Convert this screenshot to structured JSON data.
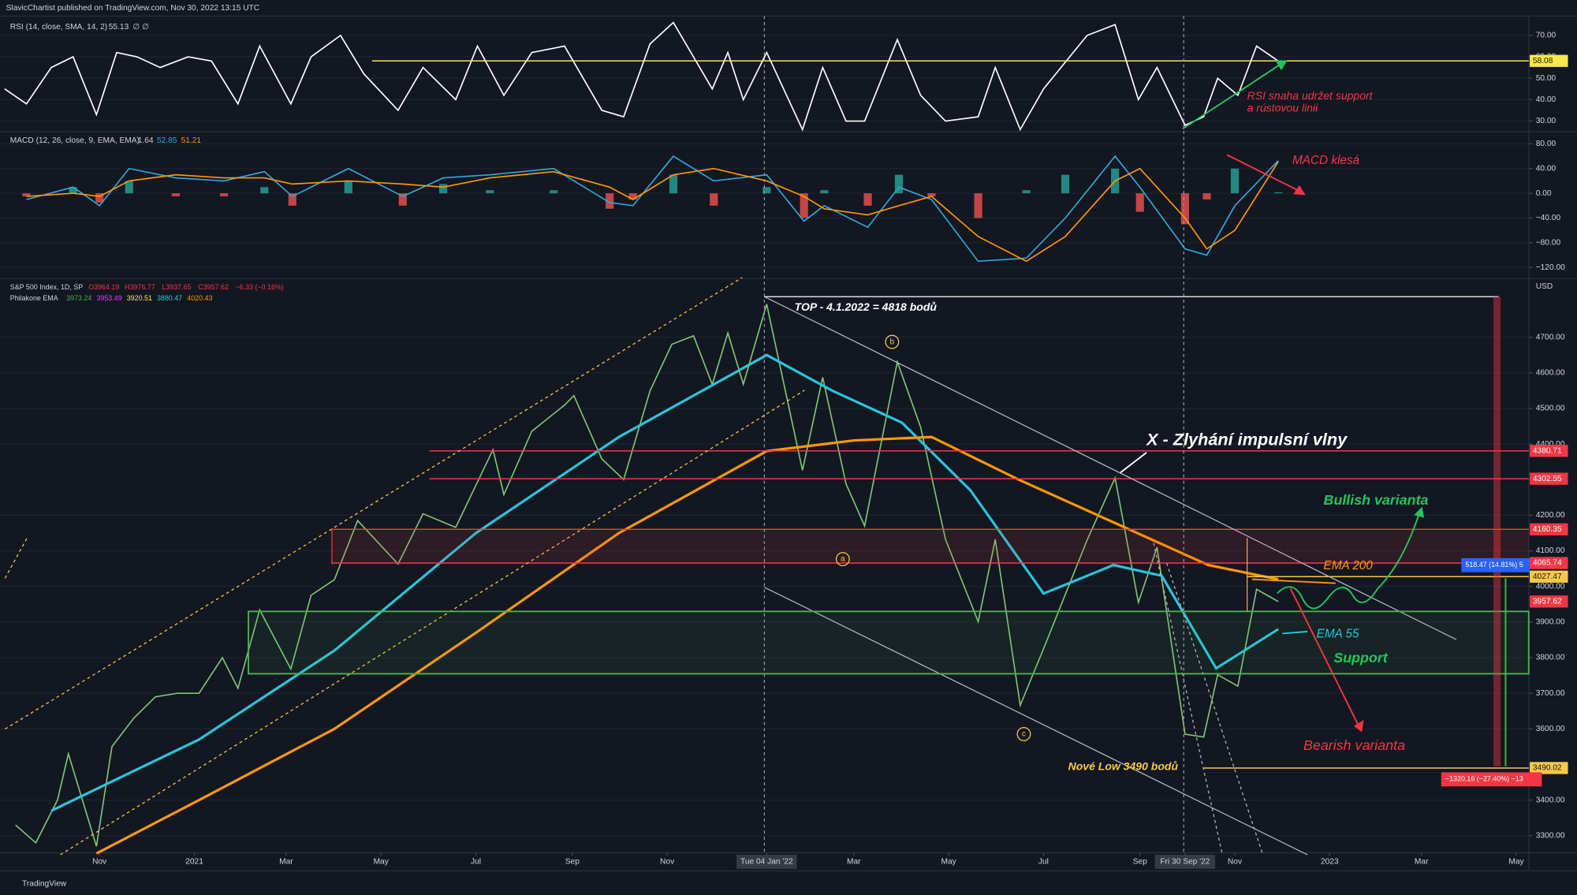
{
  "header": {
    "publisher": "SlavicChartist published on TradingView.com, Nov 30, 2022 13:15 UTC",
    "footer": "TradingView"
  },
  "chart_data": [
    {
      "type": "line",
      "title": "RSI (14, close, SMA, 14, 2)",
      "legend_values": [
        "55.13",
        "∅ ∅"
      ],
      "xlim": [
        "2020-08-29",
        "2023-05-09"
      ],
      "ylim": [
        25,
        79
      ],
      "yticks": [
        {
          "value": 70,
          "label": "70.00"
        },
        {
          "value": 60,
          "label": "60.00"
        },
        {
          "value": 50,
          "label": "50.00"
        },
        {
          "value": 40,
          "label": "40.00"
        },
        {
          "value": 30,
          "label": "30.00"
        }
      ],
      "levels": [
        {
          "value": 58.08,
          "color": "#f7e948"
        }
      ],
      "series": [
        {
          "name": "RSI",
          "color": "#ffffff",
          "style": "line",
          "x": [
            "2020-09-01",
            "2020-09-15",
            "2020-10-01",
            "2020-10-15",
            "2020-10-30",
            "2020-11-12",
            "2020-11-25",
            "2020-12-10",
            "2020-12-28",
            "2021-01-12",
            "2021-01-29",
            "2021-02-12",
            "2021-03-04",
            "2021-03-17",
            "2021-04-05",
            "2021-04-20",
            "2021-05-12",
            "2021-05-28",
            "2021-06-18",
            "2021-07-02",
            "2021-07-19",
            "2021-08-06",
            "2021-08-27",
            "2021-09-20",
            "2021-10-04",
            "2021-10-21",
            "2021-11-05",
            "2021-11-30",
            "2021-12-10",
            "2021-12-20",
            "2022-01-04",
            "2022-01-27",
            "2022-02-09",
            "2022-02-24",
            "2022-03-08",
            "2022-03-29",
            "2022-04-13",
            "2022-04-29",
            "2022-05-20",
            "2022-05-31",
            "2022-06-16",
            "2022-07-01",
            "2022-07-29",
            "2022-08-16",
            "2022-08-31",
            "2022-09-12",
            "2022-09-30",
            "2022-10-12",
            "2022-10-21",
            "2022-11-03",
            "2022-11-15",
            "2022-11-29"
          ],
          "values": [
            45,
            38,
            55,
            60,
            33,
            62,
            60,
            55,
            60,
            58,
            38,
            65,
            38,
            60,
            70,
            52,
            35,
            55,
            40,
            65,
            42,
            62,
            65,
            35,
            32,
            66,
            76,
            45,
            62,
            40,
            62,
            26,
            55,
            30,
            30,
            68,
            42,
            30,
            32,
            55,
            26,
            45,
            70,
            75,
            40,
            55,
            28,
            32,
            50,
            42,
            65,
            58
          ]
        }
      ],
      "annotations": {
        "line1": "RSI snaha udržet support",
        "line2": "a rústovou linii"
      }
    },
    {
      "type": "line",
      "title": "MACD (12, 26, close, 9, EMA, EMA)",
      "legend_values": [
        "1.64",
        "52.85",
        "51.21"
      ],
      "xlim": [
        "2020-08-29",
        "2023-05-09"
      ],
      "ylim": [
        -138,
        98
      ],
      "yticks": [
        {
          "value": 80,
          "label": "80.00"
        },
        {
          "value": 40,
          "label": "40.00"
        },
        {
          "value": 0,
          "label": "0.00"
        },
        {
          "value": -40,
          "label": "−40.00"
        },
        {
          "value": -80,
          "label": "−80.00"
        },
        {
          "value": -120,
          "label": "−120.00"
        }
      ],
      "x": [
        "2020-09-15",
        "2020-10-15",
        "2020-11-01",
        "2020-11-20",
        "2020-12-20",
        "2021-01-20",
        "2021-02-15",
        "2021-03-05",
        "2021-04-10",
        "2021-05-15",
        "2021-06-10",
        "2021-07-10",
        "2021-08-20",
        "2021-09-25",
        "2021-10-10",
        "2021-11-05",
        "2021-12-01",
        "2022-01-04",
        "2022-01-28",
        "2022-02-10",
        "2022-03-10",
        "2022-03-30",
        "2022-04-20",
        "2022-05-20",
        "2022-06-20",
        "2022-07-15",
        "2022-08-16",
        "2022-09-01",
        "2022-09-30",
        "2022-10-14",
        "2022-11-01",
        "2022-11-29"
      ],
      "series": [
        {
          "name": "Histogram",
          "color": "#26a69a",
          "negative_color": "#ef5350",
          "style": "histogram",
          "values": [
            -5,
            10,
            -15,
            20,
            -5,
            -5,
            10,
            -20,
            20,
            -20,
            15,
            5,
            5,
            -25,
            -10,
            30,
            -20,
            10,
            -40,
            5,
            -20,
            30,
            -5,
            -40,
            5,
            30,
            40,
            -30,
            -50,
            -10,
            40,
            1.64
          ]
        },
        {
          "name": "MACD",
          "color": "#2fa8d8",
          "style": "line",
          "values": [
            -10,
            10,
            -20,
            40,
            25,
            20,
            35,
            -5,
            40,
            -5,
            25,
            30,
            40,
            -15,
            -20,
            60,
            20,
            30,
            -45,
            -20,
            -55,
            10,
            -10,
            -110,
            -105,
            -40,
            60,
            10,
            -90,
            -100,
            -20,
            52.85
          ]
        },
        {
          "name": "Signal",
          "color": "#ff9800",
          "style": "line",
          "values": [
            -5,
            0,
            -5,
            20,
            30,
            25,
            25,
            15,
            20,
            15,
            10,
            25,
            35,
            10,
            -10,
            30,
            40,
            20,
            -5,
            -25,
            -35,
            -20,
            -5,
            -70,
            -110,
            -70,
            20,
            40,
            -40,
            -90,
            -60,
            51.21
          ]
        }
      ],
      "annotations": {
        "macd": "MACD klesá"
      }
    },
    {
      "type": "line",
      "title": "S&P 500 Index, 1D, SP",
      "legend_values": [
        "O3964.19",
        "H3976.77",
        "L3937.65",
        "C3957.62",
        "−6.33 (−0.16%)"
      ],
      "subtitle": "Philakone EMA",
      "ema_values": [
        "3973.24",
        "3953.49",
        "3920.51",
        "3880.47",
        "4020.43"
      ],
      "currency": "USD",
      "xlim": [
        "2020-08-29",
        "2023-05-09"
      ],
      "ylim": [
        3252,
        4828
      ],
      "xticks": [
        {
          "value": "2020-11-01",
          "label": "Nov"
        },
        {
          "value": "2021-01-01",
          "label": "2021"
        },
        {
          "value": "2021-03-01",
          "label": "Mar"
        },
        {
          "value": "2021-05-01",
          "label": "May"
        },
        {
          "value": "2021-07-01",
          "label": "Jul"
        },
        {
          "value": "2021-09-01",
          "label": "Sep"
        },
        {
          "value": "2021-11-01",
          "label": "Nov"
        },
        {
          "value": "2022-01-04",
          "label": "Tue 04 Jan '22"
        },
        {
          "value": "2022-03-01",
          "label": "Mar"
        },
        {
          "value": "2022-05-01",
          "label": "May"
        },
        {
          "value": "2022-07-01",
          "label": "Jul"
        },
        {
          "value": "2022-09-01",
          "label": "Sep"
        },
        {
          "value": "2022-09-30",
          "label": "Fri 30 Sep '22"
        },
        {
          "value": "2022-11-01",
          "label": "Nov"
        },
        {
          "value": "2023-01-01",
          "label": "2023"
        },
        {
          "value": "2023-03-01",
          "label": "Mar"
        },
        {
          "value": "2023-05-01",
          "label": "May"
        }
      ],
      "yticks": [
        {
          "value": 4700,
          "label": "4700.00"
        },
        {
          "value": 4600,
          "label": "4600.00"
        },
        {
          "value": 4500,
          "label": "4500.00"
        },
        {
          "value": 4400,
          "label": "4400.00"
        },
        {
          "value": 4200,
          "label": "4200.00"
        },
        {
          "value": 4100,
          "label": "4100.00"
        },
        {
          "value": 4000,
          "label": "4000.00"
        },
        {
          "value": 3900,
          "label": "3900.00"
        },
        {
          "value": 3800,
          "label": "3800.00"
        },
        {
          "value": 3700,
          "label": "3700.00"
        },
        {
          "value": 3600,
          "label": "3600.00"
        },
        {
          "value": 3400,
          "label": "3400.00"
        },
        {
          "value": 3300,
          "label": "3300.00"
        }
      ],
      "levels": [
        {
          "value": 4380.71,
          "color": "#f23645"
        },
        {
          "value": 4302.55,
          "color": "#f23645"
        },
        {
          "value": 4160.35,
          "color": "#f23645"
        },
        {
          "value": 4065.74,
          "color": "#f23645"
        },
        {
          "value": 4027.47,
          "color": "#f7c948"
        },
        {
          "value": 3957.62,
          "color": "#f23645"
        },
        {
          "value": 3490.02,
          "color": "#f7c948"
        }
      ],
      "series": [
        {
          "name": "S&P 500",
          "color": "#7cc576",
          "style": "line",
          "x": [
            "2020-09-08",
            "2020-09-21",
            "2020-10-05",
            "2020-10-12",
            "2020-10-30",
            "2020-11-09",
            "2020-11-23",
            "2020-12-07",
            "2020-12-21",
            "2021-01-04",
            "2021-01-19",
            "2021-01-29",
            "2021-02-12",
            "2021-03-04",
            "2021-03-17",
            "2021-04-01",
            "2021-04-16",
            "2021-05-12",
            "2021-05-28",
            "2021-06-18",
            "2021-07-12",
            "2021-07-19",
            "2021-08-06",
            "2021-08-27",
            "2021-09-02",
            "2021-09-20",
            "2021-10-04",
            "2021-10-21",
            "2021-11-04",
            "2021-11-18",
            "2021-11-30",
            "2021-12-10",
            "2021-12-20",
            "2022-01-04",
            "2022-01-27",
            "2022-02-09",
            "2022-02-24",
            "2022-03-08",
            "2022-03-29",
            "2022-04-13",
            "2022-04-29",
            "2022-05-20",
            "2022-05-31",
            "2022-06-16",
            "2022-07-01",
            "2022-07-29",
            "2022-08-16",
            "2022-08-31",
            "2022-09-12",
            "2022-09-30",
            "2022-10-12",
            "2022-10-21",
            "2022-11-03",
            "2022-11-15",
            "2022-11-29"
          ],
          "values": [
            3330,
            3280,
            3400,
            3530,
            3270,
            3550,
            3630,
            3690,
            3700,
            3700,
            3800,
            3714,
            3934,
            3768,
            3975,
            4019,
            4185,
            4063,
            4204,
            4166,
            4384,
            4258,
            4436,
            4509,
            4536,
            4358,
            4300,
            4549,
            4680,
            4704,
            4567,
            4712,
            4568,
            4793,
            4326,
            4587,
            4288,
            4170,
            4631,
            4447,
            4132,
            3901,
            4132,
            3666,
            3825,
            4130,
            4305,
            3955,
            4110,
            3585,
            3577,
            3752,
            3720,
            3992,
            3957.62
          ]
        },
        {
          "name": "EMA 55",
          "color": "#26c6da",
          "style": "line",
          "x": [
            "2020-10-01",
            "2021-01-04",
            "2021-04-01",
            "2021-07-01",
            "2021-10-01",
            "2022-01-04",
            "2022-02-15",
            "2022-04-01",
            "2022-05-15",
            "2022-07-01",
            "2022-08-15",
            "2022-09-15",
            "2022-10-20",
            "2022-11-29"
          ],
          "values": [
            3370,
            3570,
            3820,
            4150,
            4420,
            4650,
            4550,
            4460,
            4270,
            3980,
            4060,
            4030,
            3770,
            3880
          ]
        },
        {
          "name": "EMA 200",
          "color": "#ff9800",
          "style": "line",
          "x": [
            "2020-10-30",
            "2021-01-04",
            "2021-04-01",
            "2021-07-01",
            "2021-10-01",
            "2022-01-04",
            "2022-03-01",
            "2022-04-20",
            "2022-06-15",
            "2022-08-15",
            "2022-10-15",
            "2022-11-29"
          ],
          "values": [
            3250,
            3400,
            3600,
            3870,
            4150,
            4380,
            4410,
            4420,
            4300,
            4180,
            4060,
            4020
          ]
        }
      ],
      "annotations": {
        "top": "TOP - 4.1.2022 = 4818 bodů",
        "x_fail": "X - Zlyhání impulsní vlny",
        "bullish": "Bullish varianta",
        "ema200": "EMA 200",
        "ema55": "EMA 55",
        "support": "Support",
        "bearish": "Bearish varianta",
        "low": "Nové Low 3490 bodů",
        "wave_a": "a",
        "wave_b": "b",
        "wave_c": "c",
        "gain": "518.47 (14.81%) 5",
        "loss": "−1320.16 (−27.40%) −13"
      }
    }
  ]
}
